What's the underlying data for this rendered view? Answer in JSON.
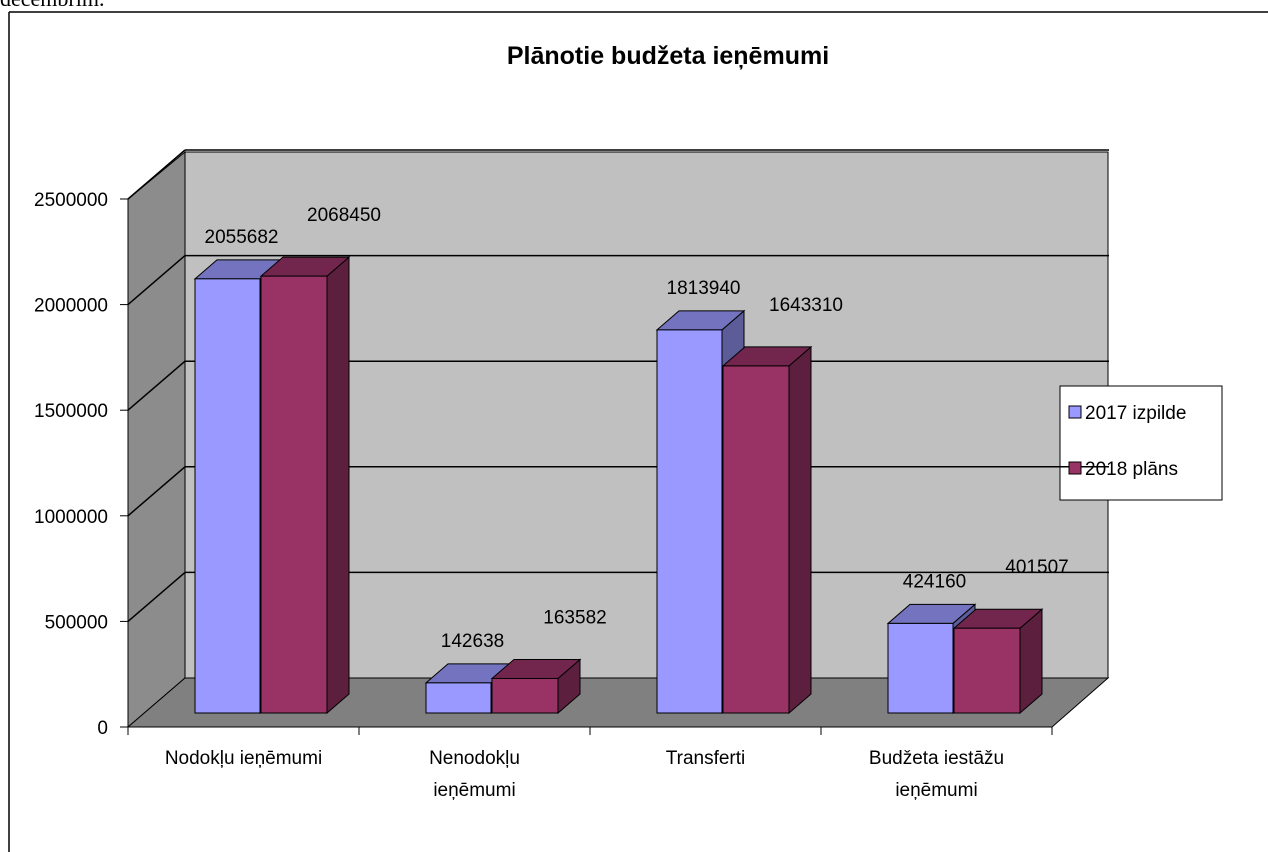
{
  "text_above": "decembrim.",
  "chart_data": {
    "type": "bar3d",
    "title": "Plānotie budžeta ieņēmumi",
    "categories": [
      "Nodokļu ieņēmumi",
      "Nenodokļu ieņēmumi",
      "Transferti",
      "Budžeta iestāžu ieņēmumi"
    ],
    "series": [
      {
        "name": "2017 izpilde",
        "color": "#9999ff",
        "values": [
          2055682,
          142638,
          1813940,
          424160
        ]
      },
      {
        "name": "2018 plāns",
        "color": "#993366",
        "values": [
          2068450,
          163582,
          1643310,
          401507
        ]
      }
    ],
    "ylim": [
      0,
      2500000
    ],
    "yticks": [
      0,
      500000,
      1000000,
      1500000,
      2000000,
      2500000
    ],
    "grid": true,
    "legend": "right"
  }
}
